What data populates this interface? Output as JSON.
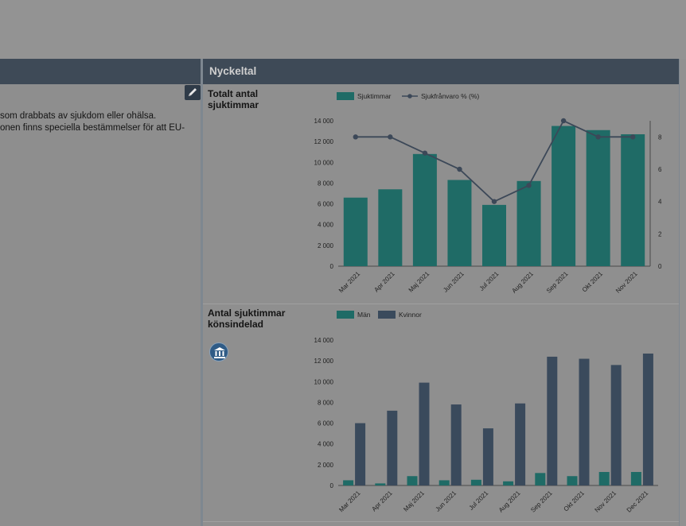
{
  "left_panel": {
    "text_lines": [
      "som drabbats av sjukdom eller ohälsa.",
      "onen finns speciella bestämmelser för att EU-"
    ]
  },
  "right_panel": {
    "title": "Nyckeltal"
  },
  "cards": [
    {
      "title": "Totalt antal sjuktimmar"
    },
    {
      "title": "Antal sjuktimmar könsindelad"
    }
  ],
  "icons": {
    "edit": "pencil-icon",
    "org": "institution-icon"
  },
  "colors": {
    "teal": "#1f6b66",
    "navy": "#3a4a5c",
    "line": "#3c4858",
    "header": "#3e4a57"
  },
  "chart_data": [
    {
      "type": "bar",
      "title": "Totalt antal sjuktimmar",
      "categories": [
        "Mar 2021",
        "Apr 2021",
        "Maj 2021",
        "Jun 2021",
        "Jul 2021",
        "Aug 2021",
        "Sep 2021",
        "Okt 2021",
        "Nov 2021"
      ],
      "series": [
        {
          "name": "Sjuktimmar",
          "kind": "bar",
          "axis": "left",
          "color": "#1f6b66",
          "values": [
            6600,
            7400,
            10800,
            8300,
            5900,
            8200,
            13500,
            13100,
            12700
          ]
        },
        {
          "name": "Sjukfrånvaro % (%)",
          "kind": "line",
          "axis": "right",
          "color": "#3c4858",
          "values": [
            8,
            8,
            7,
            6,
            4,
            5,
            9,
            8,
            8
          ]
        }
      ],
      "ylim": [
        0,
        14000
      ],
      "yticks": [
        "0",
        "2 000",
        "4 000",
        "6 000",
        "8 000",
        "10 000",
        "12 000",
        "14 000"
      ],
      "y2lim": [
        0,
        9
      ],
      "y2ticks": [
        "0",
        "2",
        "4",
        "6",
        "8"
      ],
      "legend": "top"
    },
    {
      "type": "bar",
      "title": "Antal sjuktimmar könsindelad",
      "categories": [
        "Mar 2021",
        "Apr 2021",
        "Maj 2021",
        "Jun 2021",
        "Jul 2021",
        "Aug 2021",
        "Sep 2021",
        "Okt 2021",
        "Nov 2021",
        "Dec 2021"
      ],
      "series": [
        {
          "name": "Män",
          "color": "#1f6b66",
          "values": [
            500,
            200,
            900,
            500,
            550,
            400,
            1200,
            900,
            1300,
            1300
          ]
        },
        {
          "name": "Kvinnor",
          "color": "#3a4a5c",
          "values": [
            6000,
            7200,
            9900,
            7800,
            5500,
            7900,
            12400,
            12200,
            11600,
            12700
          ]
        }
      ],
      "ylim": [
        0,
        14000
      ],
      "yticks": [
        "0",
        "2 000",
        "4 000",
        "6 000",
        "8 000",
        "10 000",
        "12 000",
        "14 000"
      ],
      "legend": "top"
    }
  ]
}
